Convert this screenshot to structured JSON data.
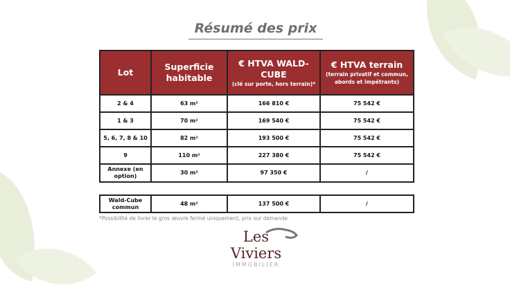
{
  "title": "Résumé des prix",
  "table": {
    "headers": [
      {
        "main": "Lot",
        "sub": ""
      },
      {
        "main": "Superficie habitable",
        "sub": ""
      },
      {
        "main": "€ HTVA WALD-CUBE",
        "sub": "(clé sur porte, hors terrain)*"
      },
      {
        "main": "€ HTVA terrain",
        "sub": "(terrain privatif et commun, abords et impétrants)"
      }
    ],
    "rows": [
      [
        "2 & 4",
        "63 m²",
        "166 810 €",
        "75 542 €"
      ],
      [
        "1 & 3",
        "70 m²",
        "169 540 €",
        "75 542 €"
      ],
      [
        "5, 6, 7, 8 & 10",
        "82 m²",
        "193 500 €",
        "75 542 €"
      ],
      [
        "9",
        "110 m²",
        "227 380 €",
        "75 542 €"
      ],
      [
        "Annexe (en option)",
        "30 m²",
        "97 350 €",
        "/"
      ]
    ],
    "extra_row": [
      "Wald-Cube commun",
      "48 m²",
      "137 500 €",
      "/"
    ]
  },
  "footnote": "*Possibilité de livrer le gros œuvre fermé uniquement, prix sur demande",
  "logo": {
    "name": "Les Viviers",
    "sub": "IMMOBILIER"
  },
  "colors": {
    "header": "#9b2f30",
    "leaf": "#e8eed9"
  }
}
